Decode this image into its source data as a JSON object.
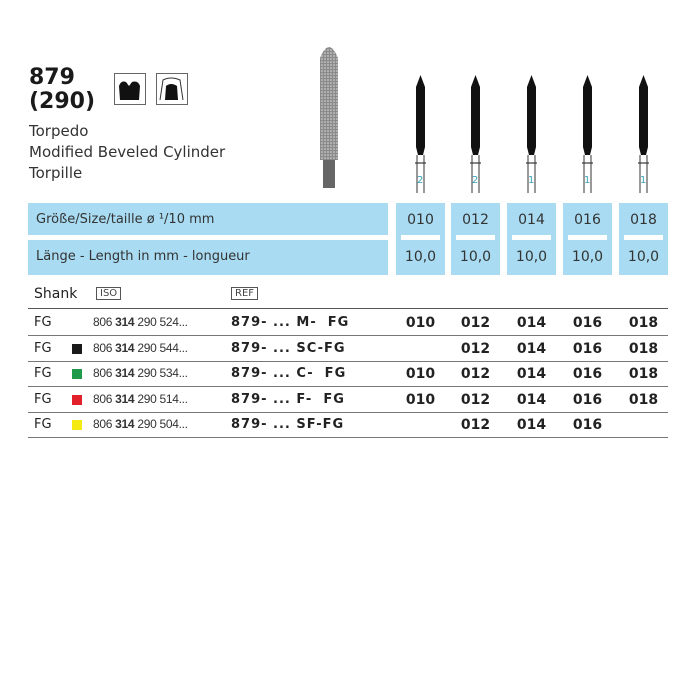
{
  "product": {
    "number": "879",
    "iso_number": "(290)",
    "names": [
      "Torpedo",
      "Modified Beveled Cylinder",
      "Torpille"
    ]
  },
  "icons": [
    "crown-preparation-icon",
    "tooth-preparation-icon"
  ],
  "size_label": "Größe/Size/taille  ø ¹/10 mm",
  "length_label": "Länge - Length in mm - longueur",
  "columns": [
    {
      "size": "010",
      "length": "10,0",
      "pack": "2"
    },
    {
      "size": "012",
      "length": "10,0",
      "pack": "2"
    },
    {
      "size": "014",
      "length": "10,0",
      "pack": "1"
    },
    {
      "size": "016",
      "length": "10,0",
      "pack": "1"
    },
    {
      "size": "018",
      "length": "10,0",
      "pack": "1"
    }
  ],
  "table": {
    "shank_header": "Shank",
    "iso_header": "ISO",
    "ref_header": "REF",
    "rows": [
      {
        "shank": "FG",
        "color": "",
        "iso_prefix": "806 ",
        "iso_bold": "314",
        "iso_suffix": " 290 524...",
        "ref": "879- ... M-  FG",
        "sizes": [
          "010",
          "012",
          "014",
          "016",
          "018"
        ]
      },
      {
        "shank": "FG",
        "color": "#1a1a1a",
        "iso_prefix": "806 ",
        "iso_bold": "314",
        "iso_suffix": " 290 544...",
        "ref": "879- ... SC-FG",
        "sizes": [
          "",
          "012",
          "014",
          "016",
          "018"
        ]
      },
      {
        "shank": "FG",
        "color": "#1e9a4a",
        "iso_prefix": "806 ",
        "iso_bold": "314",
        "iso_suffix": " 290 534...",
        "ref": "879- ... C-  FG",
        "sizes": [
          "010",
          "012",
          "014",
          "016",
          "018"
        ]
      },
      {
        "shank": "FG",
        "color": "#e2202a",
        "iso_prefix": "806 ",
        "iso_bold": "314",
        "iso_suffix": " 290 514...",
        "ref": "879- ... F-  FG",
        "sizes": [
          "010",
          "012",
          "014",
          "016",
          "018"
        ]
      },
      {
        "shank": "FG",
        "color": "#f5ea14",
        "iso_prefix": "806 ",
        "iso_bold": "314",
        "iso_suffix": " 290 504...",
        "ref": "879- ... SF-FG",
        "sizes": [
          "",
          "012",
          "014",
          "016",
          ""
        ]
      }
    ]
  }
}
